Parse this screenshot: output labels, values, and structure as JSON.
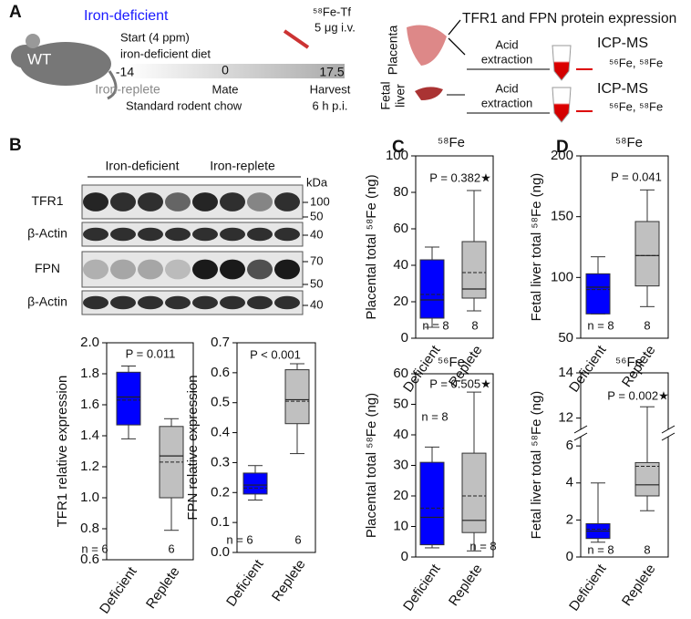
{
  "panel_a": {
    "letter": "A",
    "group": "Iron-deficient",
    "mouse": "WT",
    "start_1": "Start (4 ppm)",
    "start_2": "iron-deficient diet",
    "tracer_1": "⁵⁸Fe-Tf",
    "tracer_2": "5 μg i.v.",
    "time_1": "-14",
    "time_2": "0",
    "time_3": "17.5",
    "replete": "Iron-replete",
    "mate": "Mate",
    "harvest": "Harvest",
    "chow": "Standard rodent chow",
    "hours": "6 h p.i.",
    "placenta": "Placenta",
    "protein": "TFR1 and FPN protein expression",
    "acid_1": "Acid",
    "extraction_1": "extraction",
    "icp_1": "ICP-MS",
    "isotopes_1": "⁵⁶Fe, ⁵⁸Fe",
    "fetal_1": "Fetal",
    "fetal_2": "liver",
    "acid_2": "Acid",
    "extraction_2": "extraction",
    "icp_2": "ICP-MS",
    "isotopes_2": "⁵⁶Fe, ⁵⁸Fe"
  },
  "blots": {
    "letter": "B",
    "group_1": "Iron-deficient",
    "group_2": "Iron-replete",
    "unit": "kDa",
    "rows": [
      "TFR1",
      "β-Actin",
      "FPN",
      "β-Actin"
    ],
    "markers": [
      "100",
      "50",
      "40",
      "70",
      "50",
      "40"
    ]
  },
  "chart_data": [
    {
      "type": "box",
      "ylabel": "TFR1 relative expression",
      "categories": [
        "Deficient",
        "Replete"
      ],
      "colors": [
        "#0000ff",
        "#c0c0c0"
      ],
      "boxes": [
        {
          "min": 1.38,
          "q1": 1.47,
          "median": 1.65,
          "mean": 1.63,
          "q3": 1.81,
          "max": 1.85
        },
        {
          "min": 0.79,
          "q1": 1.0,
          "median": 1.27,
          "mean": 1.23,
          "q3": 1.46,
          "max": 1.51
        }
      ],
      "ylim": [
        0.6,
        2
      ],
      "yticks": [
        0.6,
        0.8,
        {
          "value": 1,
          "label": "1.0"
        },
        1.2,
        1.4,
        1.6,
        1.8,
        {
          "value": 2,
          "label": "2.0"
        }
      ],
      "p_label": "P = 0.011",
      "n_labels": [
        "n = 6",
        "6"
      ]
    },
    {
      "type": "box",
      "ylabel": "FPN relative expression",
      "categories": [
        "Deficient",
        "Replete"
      ],
      "colors": [
        "#0000ff",
        "#c0c0c0"
      ],
      "boxes": [
        {
          "min": 0.175,
          "q1": 0.195,
          "median": 0.225,
          "mean": 0.215,
          "q3": 0.265,
          "max": 0.29
        },
        {
          "min": 0.33,
          "q1": 0.43,
          "median": 0.51,
          "mean": 0.505,
          "q3": 0.61,
          "max": 0.63
        }
      ],
      "ylim": [
        0,
        0.7
      ],
      "yticks": [
        {
          "value": 0,
          "label": "0.0"
        },
        0.1,
        0.2,
        0.3,
        0.4,
        0.5,
        0.6,
        0.7
      ],
      "p_label": "P < 0.001",
      "n_labels": [
        "n = 6",
        "6"
      ]
    },
    {
      "type": "box",
      "letter": "C",
      "title": "⁵⁸Fe",
      "ylabel": "Placental total ⁵⁸Fe (ng)",
      "categories": [
        "Deficient",
        "Replete"
      ],
      "colors": [
        "#0000ff",
        "#c0c0c0"
      ],
      "boxes": [
        {
          "min": 6,
          "q1": 11,
          "median": 21,
          "mean": 24,
          "q3": 43,
          "max": 50
        },
        {
          "min": 15,
          "q1": 22,
          "median": 27,
          "mean": 36,
          "q3": 53,
          "max": 81
        }
      ],
      "ylim": [
        0,
        100
      ],
      "yticks": [
        0,
        20,
        40,
        60,
        80,
        100
      ],
      "p_label": "P = 0.382★",
      "n_labels": [
        "n = 8",
        "8"
      ]
    },
    {
      "type": "box",
      "title": "⁵⁶Fe",
      "ylabel": "Placental total ⁵⁸Fe (ng)",
      "categories": [
        "Deficient",
        "Replete"
      ],
      "colors": [
        "#0000ff",
        "#c0c0c0"
      ],
      "boxes": [
        {
          "min": 3,
          "q1": 4,
          "median": 13,
          "mean": 16,
          "q3": 31,
          "max": 36
        },
        {
          "min": 2,
          "q1": 8,
          "median": 12,
          "mean": 20,
          "q3": 34,
          "max": 54
        }
      ],
      "ylim": [
        0,
        60
      ],
      "yticks": [
        0,
        10,
        20,
        30,
        40,
        50,
        60
      ],
      "p_label": "P = 0.505★",
      "n_labels": [
        "n = 8",
        "n = 8"
      ]
    },
    {
      "type": "box",
      "letter": "D",
      "title": "⁵⁸Fe",
      "ylabel": "Fetal liver total ⁵⁸Fe (ng)",
      "categories": [
        "Deficient",
        "Replete"
      ],
      "colors": [
        "#0000ff",
        "#c0c0c0"
      ],
      "boxes": [
        {
          "min": 70,
          "q1": 70,
          "median": 92,
          "mean": 90,
          "q3": 103,
          "max": 117
        },
        {
          "min": 76,
          "q1": 93,
          "median": 118,
          "mean": 118,
          "q3": 146,
          "max": 172
        }
      ],
      "ylim": [
        50,
        200
      ],
      "yticks": [
        50,
        100,
        150,
        200
      ],
      "p_label": "P = 0.041",
      "n_labels": [
        "n = 8",
        "8"
      ]
    },
    {
      "type": "box",
      "title": "⁵⁶Fe",
      "ylabel": "Fetal liver total ⁵⁸Fe (ng)",
      "categories": [
        "Deficient",
        "Replete"
      ],
      "colors": [
        "#0000ff",
        "#c0c0c0"
      ],
      "boxes": [
        {
          "min": 0.8,
          "q1": 1.0,
          "median": 1.4,
          "mean": 1.5,
          "q3": 1.8,
          "max": 4.0
        },
        {
          "min": 2.5,
          "q1": 3.3,
          "median": 3.9,
          "mean": 4.9,
          "q3": 5.1,
          "max": 12.5
        }
      ],
      "ylim": [
        0,
        14
      ],
      "ybreak": [
        6.5,
        11.5
      ],
      "yticks": [
        0,
        2,
        4,
        6,
        12,
        14
      ],
      "p_label": "P = 0.002★",
      "n_labels": [
        "n = 8",
        "8"
      ]
    }
  ]
}
